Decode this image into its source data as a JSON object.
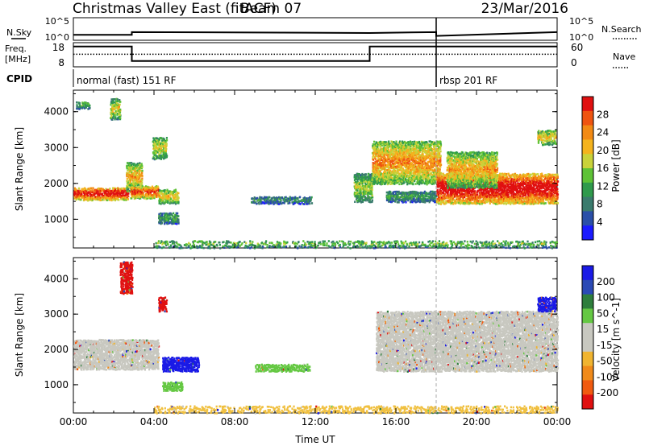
{
  "header": {
    "title": "Christmas Valley East (fitACF)",
    "beam": "Beam 07",
    "date": "23/Mar/2016"
  },
  "chart_data": [
    {
      "type": "line",
      "panel": "noise",
      "left_label": "N.Sky",
      "right_label": "N.Search",
      "left_ticks": [
        "10^5",
        "10^0"
      ],
      "right_ticks": [
        "10^5",
        "10^0"
      ],
      "x_hours": [
        0,
        2.9,
        2.9,
        14.7,
        18,
        18,
        24
      ],
      "y_level": [
        0.1,
        0.1,
        0.22,
        0.18,
        0.22,
        0.05,
        0.22
      ]
    },
    {
      "type": "line",
      "panel": "frequency",
      "left_label": "Freq.",
      "left_unit": "[MHz]",
      "left_ticks": [
        18,
        8
      ],
      "right_label": "Nave",
      "right_ticks": [
        60,
        0
      ],
      "freq_steps": [
        {
          "from": 0,
          "to": 2.9,
          "value": 16.4
        },
        {
          "from": 2.9,
          "to": 14.7,
          "value": 10.4
        },
        {
          "from": 14.7,
          "to": 18,
          "value": 16.4
        },
        {
          "from": 18,
          "to": 24,
          "value": 16.4
        }
      ],
      "nave_level": 13.2
    },
    {
      "type": "table",
      "panel": "cpid",
      "label": "CPID",
      "segments": [
        {
          "start": 0,
          "text": "normal (fast) 151 RF"
        },
        {
          "start": 18,
          "text": "rbsp 201 RF"
        }
      ]
    },
    {
      "type": "heatmap",
      "panel": "power",
      "ylabel": "Slant Range [km]",
      "yticks": [
        1000,
        2000,
        3000,
        4000
      ],
      "ylim": [
        200,
        4600
      ],
      "colorbar_label": "Power [dB]",
      "colorbar_ticks": [
        4,
        8,
        12,
        16,
        20,
        24,
        28
      ],
      "colorbar_colors": [
        "#1a1aff",
        "#2a4fa8",
        "#3a7b6d",
        "#2f9a4c",
        "#5ec236",
        "#c9d23a",
        "#f4b31d",
        "#f28a14",
        "#ef5410",
        "#e01010"
      ],
      "features": [
        {
          "t": [
            0.0,
            2.7
          ],
          "r": [
            1550,
            1900
          ],
          "level": 0.9
        },
        {
          "t": [
            2.6,
            3.4
          ],
          "r": [
            1800,
            2600
          ],
          "level": 0.6
        },
        {
          "t": [
            2.8,
            4.2
          ],
          "r": [
            1600,
            1950
          ],
          "level": 0.8
        },
        {
          "t": [
            4.2,
            5.2
          ],
          "r": [
            1450,
            1850
          ],
          "level": 0.55
        },
        {
          "t": [
            4.2,
            5.2
          ],
          "r": [
            900,
            1200
          ],
          "level": 0.3
        },
        {
          "t": [
            1.8,
            2.3
          ],
          "r": [
            3800,
            4400
          ],
          "level": 0.5
        },
        {
          "t": [
            0.1,
            0.8
          ],
          "r": [
            4100,
            4300
          ],
          "level": 0.35
        },
        {
          "t": [
            3.9,
            4.6
          ],
          "r": [
            2700,
            3300
          ],
          "level": 0.5
        },
        {
          "t": [
            8.8,
            11.8
          ],
          "r": [
            1450,
            1650
          ],
          "level": 0.25
        },
        {
          "t": [
            13.9,
            14.8
          ],
          "r": [
            1500,
            2300
          ],
          "level": 0.45
        },
        {
          "t": [
            14.8,
            18.2
          ],
          "r": [
            2000,
            3200
          ],
          "level": 0.65
        },
        {
          "t": [
            15.5,
            18.0
          ],
          "r": [
            1500,
            1800
          ],
          "level": 0.3
        },
        {
          "t": [
            18.0,
            24.0
          ],
          "r": [
            1450,
            2300
          ],
          "level": 0.95
        },
        {
          "t": [
            18.5,
            21.0
          ],
          "r": [
            1900,
            2900
          ],
          "level": 0.6
        },
        {
          "t": [
            23.0,
            23.9
          ],
          "r": [
            3100,
            3500
          ],
          "level": 0.55
        },
        {
          "t": [
            4.0,
            24.0
          ],
          "r": [
            220,
            420
          ],
          "level": 0.4
        }
      ]
    },
    {
      "type": "heatmap",
      "panel": "velocity",
      "ylabel": "Slant Range [km]",
      "yticks": [
        1000,
        2000,
        3000,
        4000
      ],
      "ylim": [
        200,
        4600
      ],
      "xlabel": "Time UT",
      "xticks": [
        "00:00",
        "04:00",
        "08:00",
        "12:00",
        "16:00",
        "20:00",
        "00:00"
      ],
      "colorbar_label": "Velocity [m s^-1]",
      "colorbar_ticks": [
        200,
        100,
        50,
        15,
        -15,
        -50,
        -100,
        -200
      ],
      "colorbar_colors": [
        "#1a1ae6",
        "#2b4ab5",
        "#2e7e3c",
        "#65c843",
        "#c8c8c0",
        "#c8c8c0",
        "#f0b430",
        "#f08a1a",
        "#f05a10",
        "#e01010"
      ],
      "features": [
        {
          "t": [
            0.0,
            4.2
          ],
          "r": [
            1450,
            2300
          ],
          "velocity": 0,
          "color": "#c8c8c0"
        },
        {
          "t": [
            2.3,
            2.9
          ],
          "r": [
            3600,
            4500
          ],
          "velocity": -250,
          "color": "#e01010"
        },
        {
          "t": [
            4.2,
            4.6
          ],
          "r": [
            3100,
            3500
          ],
          "velocity": -250,
          "color": "#e01010"
        },
        {
          "t": [
            4.4,
            6.2
          ],
          "r": [
            1400,
            1800
          ],
          "velocity": 250,
          "color": "#1a1ae6"
        },
        {
          "t": [
            4.4,
            5.4
          ],
          "r": [
            850,
            1100
          ],
          "velocity": 30,
          "color": "#65c843"
        },
        {
          "t": [
            9.0,
            11.7
          ],
          "r": [
            1400,
            1600
          ],
          "velocity": 30,
          "color": "#65c843"
        },
        {
          "t": [
            15.0,
            24.0
          ],
          "r": [
            1400,
            3100
          ],
          "velocity": 0,
          "color": "#c8c8c0"
        },
        {
          "t": [
            23.0,
            23.9
          ],
          "r": [
            3100,
            3500
          ],
          "velocity": 250,
          "color": "#1a1ae6"
        },
        {
          "t": [
            4.0,
            24.0
          ],
          "r": [
            220,
            420
          ],
          "velocity": -30,
          "color": "#f0c040"
        }
      ]
    }
  ]
}
